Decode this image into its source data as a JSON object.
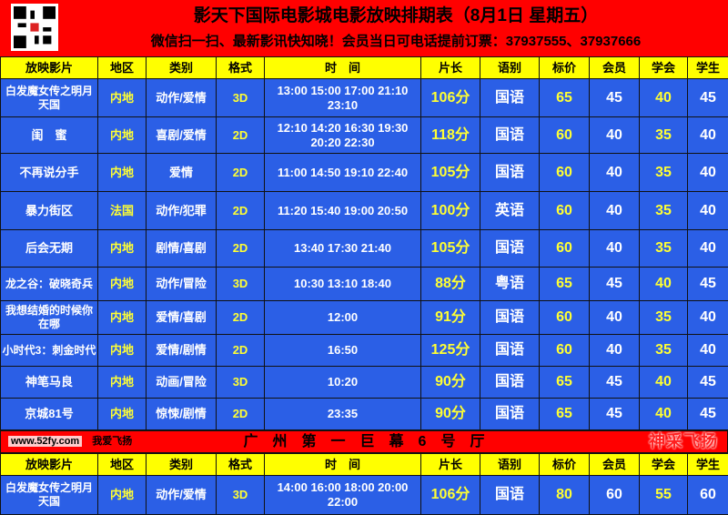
{
  "title": "影天下国际电影城电影放映排期表（8月1日 星期五）",
  "subtitle": "微信扫一扫、最新影讯快知晓！会员当日可电话提前订票：37937555、37937666",
  "columns": [
    "放映影片",
    "地区",
    "类别",
    "格式",
    "时　间",
    "片长",
    "语别",
    "标价",
    "会员",
    "学会",
    "学生"
  ],
  "rows": [
    {
      "film": "白发魔女传之明月天国",
      "region": "内地",
      "genre": "动作/爱情",
      "format": "3D",
      "times": "13:00 15:00 17:00 21:10 23:10",
      "length": "106分",
      "lang": "国语",
      "price": "65",
      "member": "45",
      "union": "40",
      "student": "45"
    },
    {
      "film": "闺　蜜",
      "region": "内地",
      "genre": "喜剧/爱情",
      "format": "2D",
      "times": "12:10 14:20 16:30 19:30 20:20 22:30",
      "length": "118分",
      "lang": "国语",
      "price": "60",
      "member": "40",
      "union": "35",
      "student": "40"
    },
    {
      "film": "不再说分手",
      "region": "内地",
      "genre": "爱情",
      "format": "2D",
      "times": "11:00 14:50 19:10 22:40",
      "length": "105分",
      "lang": "国语",
      "price": "60",
      "member": "40",
      "union": "35",
      "student": "40"
    },
    {
      "film": "暴力街区",
      "region": "法国",
      "genre": "动作/犯罪",
      "format": "2D",
      "times": "11:20 15:40 19:00 20:50",
      "length": "100分",
      "lang": "英语",
      "price": "60",
      "member": "40",
      "union": "35",
      "student": "40"
    },
    {
      "film": "后会无期",
      "region": "内地",
      "genre": "剧情/喜剧",
      "format": "2D",
      "times": "13:40 17:30 21:40",
      "length": "105分",
      "lang": "国语",
      "price": "60",
      "member": "40",
      "union": "35",
      "student": "40"
    },
    {
      "film": "龙之谷：破晓奇兵",
      "region": "内地",
      "genre": "动作/冒险",
      "format": "3D",
      "times": "10:30 13:10 18:40",
      "length": "88分",
      "lang": "粤语",
      "price": "65",
      "member": "45",
      "union": "40",
      "student": "45"
    },
    {
      "film": "我想结婚的时候你在哪",
      "region": "内地",
      "genre": "爱情/喜剧",
      "format": "2D",
      "times": "12:00",
      "length": "91分",
      "lang": "国语",
      "price": "60",
      "member": "40",
      "union": "35",
      "student": "40"
    },
    {
      "film": "小时代3：刺金时代",
      "region": "内地",
      "genre": "爱情/剧情",
      "format": "2D",
      "times": "16:50",
      "length": "125分",
      "lang": "国语",
      "price": "60",
      "member": "40",
      "union": "35",
      "student": "40"
    },
    {
      "film": "神笔马良",
      "region": "内地",
      "genre": "动画/冒险",
      "format": "3D",
      "times": "10:20",
      "length": "90分",
      "lang": "国语",
      "price": "65",
      "member": "45",
      "union": "40",
      "student": "45"
    },
    {
      "film": "京城81号",
      "region": "内地",
      "genre": "惊悚/剧情",
      "format": "2D",
      "times": "23:35",
      "length": "90分",
      "lang": "国语",
      "price": "65",
      "member": "45",
      "union": "40",
      "student": "45"
    }
  ],
  "hall2": {
    "title": "广　州　第　一　巨　幕　6　号　厅",
    "rows": [
      {
        "film": "白发魔女传之明月天国",
        "region": "内地",
        "genre": "动作/爱情",
        "format": "3D",
        "times": "14:00 16:00 18:00 20:00 22:00",
        "length": "106分",
        "lang": "国语",
        "price": "80",
        "member": "60",
        "union": "55",
        "student": "60"
      }
    ]
  },
  "watermark": {
    "logo": "神采飞扬",
    "url": "www.52fy.com",
    "tag": "我爱飞扬"
  },
  "colors": {
    "header_bg": "#ff0000",
    "column_header_bg": "#ffff00",
    "row_bg": "#2b5fe6",
    "highlight_text": "#ffff33"
  }
}
